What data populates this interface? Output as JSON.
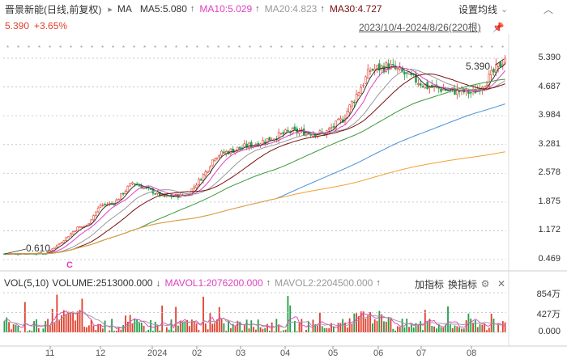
{
  "header": {
    "stock_name": "晋景新能(日线,前复权)",
    "ma_label": "MA",
    "ma5": "MA5:5.080",
    "ma10": "MA10:5.029",
    "ma20": "MA20:4.823",
    "ma30": "MA30:4.727",
    "settings_label": "设置均线",
    "up_arrow": "↑"
  },
  "quote": {
    "price": "5.390",
    "change": "+3.65%",
    "range": "2023/10/4-2024/8/26(220根)"
  },
  "chart": {
    "high_label": "5.390",
    "low_label": "0.610",
    "marker": "C"
  },
  "price_axis": [
    "5.390",
    "4.687",
    "3.984",
    "3.281",
    "2.578",
    "1.875",
    "1.172",
    "0.469"
  ],
  "volume": {
    "vol_label": "VOL(5,10)",
    "volume": "VOLUME:2513000.000",
    "down_arrow": "↓",
    "mavol1": "MAVOL1:2076200.000",
    "mavol2": "MAVOL2:2204500.000",
    "add_indicator": "加指标",
    "switch_indicator": "换指标",
    "axis": [
      "854万",
      "427万",
      "0.000"
    ]
  },
  "months": [
    "11",
    "12",
    "2024",
    "02",
    "03",
    "04",
    "05",
    "06",
    "07",
    "08"
  ],
  "colors": {
    "ma5": "#333333",
    "ma10": "#e040c0",
    "ma20": "#999999",
    "ma30": "#7a1010",
    "ma60": "#3a9a3a",
    "ma120": "#4a90d9",
    "ma250": "#f0a030",
    "up": "#e0412f",
    "down": "#22a04a"
  }
}
